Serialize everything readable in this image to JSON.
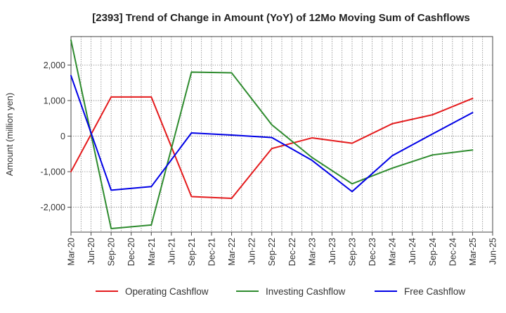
{
  "chart_data": {
    "type": "line",
    "title": "[2393]  Trend of Change in Amount (YoY) of 12Mo Moving Sum of Cashflows",
    "xlabel": "",
    "ylabel": "Amount (million yen)",
    "ylim": [
      -2700,
      2800
    ],
    "yticks": [
      -2000,
      -1000,
      0,
      1000,
      2000
    ],
    "ytick_labels": [
      "-2,000",
      "-1,000",
      "0",
      "1,000",
      "2,000"
    ],
    "x_ticks": [
      "Mar-20",
      "Jun-20",
      "Sep-20",
      "Dec-20",
      "Mar-21",
      "Jun-21",
      "Sep-21",
      "Dec-21",
      "Mar-22",
      "Jun-22",
      "Sep-22",
      "Dec-22",
      "Mar-23",
      "Jun-23",
      "Sep-23",
      "Dec-23",
      "Mar-24",
      "Jun-24",
      "Sep-24",
      "Dec-24",
      "Mar-25",
      "Jun-25"
    ],
    "grid": true,
    "legend_position": "bottom",
    "series": [
      {
        "name": "Operating Cashflow",
        "color": "#e41a1c",
        "points": [
          {
            "x": "Mar-20",
            "y": -1000
          },
          {
            "x": "Sep-20",
            "y": 1100
          },
          {
            "x": "Mar-21",
            "y": 1100
          },
          {
            "x": "Sep-21",
            "y": -1700
          },
          {
            "x": "Mar-22",
            "y": -1750
          },
          {
            "x": "Sep-22",
            "y": -350
          },
          {
            "x": "Mar-23",
            "y": -50
          },
          {
            "x": "Sep-23",
            "y": -200
          },
          {
            "x": "Mar-24",
            "y": 350
          },
          {
            "x": "Sep-24",
            "y": 600
          },
          {
            "x": "Mar-25",
            "y": 1060
          }
        ]
      },
      {
        "name": "Investing Cashflow",
        "color": "#2e8b2e",
        "points": [
          {
            "x": "Mar-20",
            "y": 2700
          },
          {
            "x": "Sep-20",
            "y": -2600
          },
          {
            "x": "Mar-21",
            "y": -2500
          },
          {
            "x": "Sep-21",
            "y": 1800
          },
          {
            "x": "Mar-22",
            "y": 1780
          },
          {
            "x": "Sep-22",
            "y": 320
          },
          {
            "x": "Mar-23",
            "y": -600
          },
          {
            "x": "Sep-23",
            "y": -1340
          },
          {
            "x": "Mar-24",
            "y": -900
          },
          {
            "x": "Sep-24",
            "y": -530
          },
          {
            "x": "Mar-25",
            "y": -390
          }
        ]
      },
      {
        "name": "Free Cashflow",
        "color": "#0000e6",
        "points": [
          {
            "x": "Mar-20",
            "y": 1700
          },
          {
            "x": "Sep-20",
            "y": -1520
          },
          {
            "x": "Mar-21",
            "y": -1420
          },
          {
            "x": "Sep-21",
            "y": 90
          },
          {
            "x": "Mar-22",
            "y": 30
          },
          {
            "x": "Sep-22",
            "y": -40
          },
          {
            "x": "Mar-23",
            "y": -680
          },
          {
            "x": "Sep-23",
            "y": -1560
          },
          {
            "x": "Mar-24",
            "y": -550
          },
          {
            "x": "Sep-24",
            "y": 60
          },
          {
            "x": "Mar-25",
            "y": 660
          }
        ]
      }
    ]
  }
}
